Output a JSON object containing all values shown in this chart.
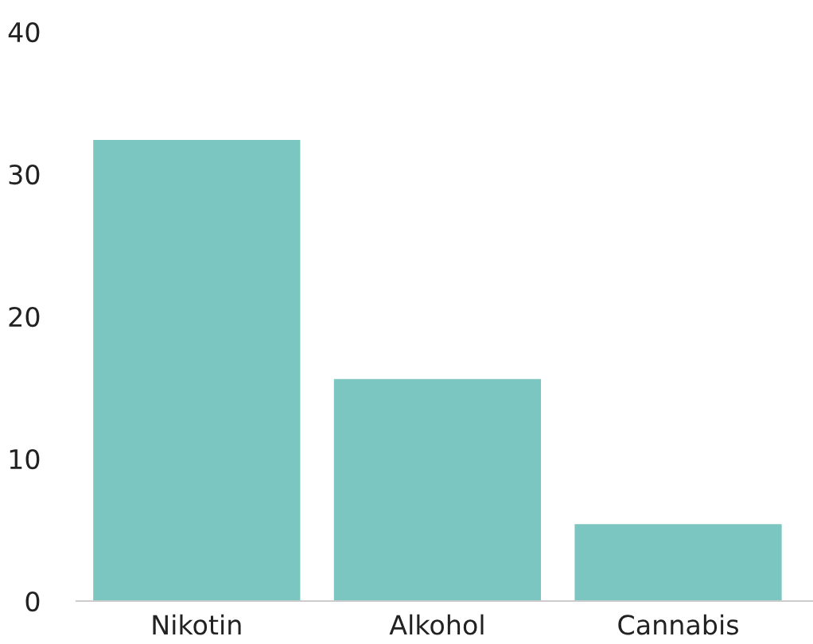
{
  "chart_data": {
    "type": "bar",
    "categories": [
      "Nikotin",
      "Alkohol",
      "Cannabis"
    ],
    "values": [
      32.4,
      15.6,
      5.4
    ],
    "color": "#7bc6c0",
    "ylim": [
      0,
      40
    ],
    "yticks": [
      0,
      10,
      20,
      30,
      40
    ],
    "grid": false
  }
}
